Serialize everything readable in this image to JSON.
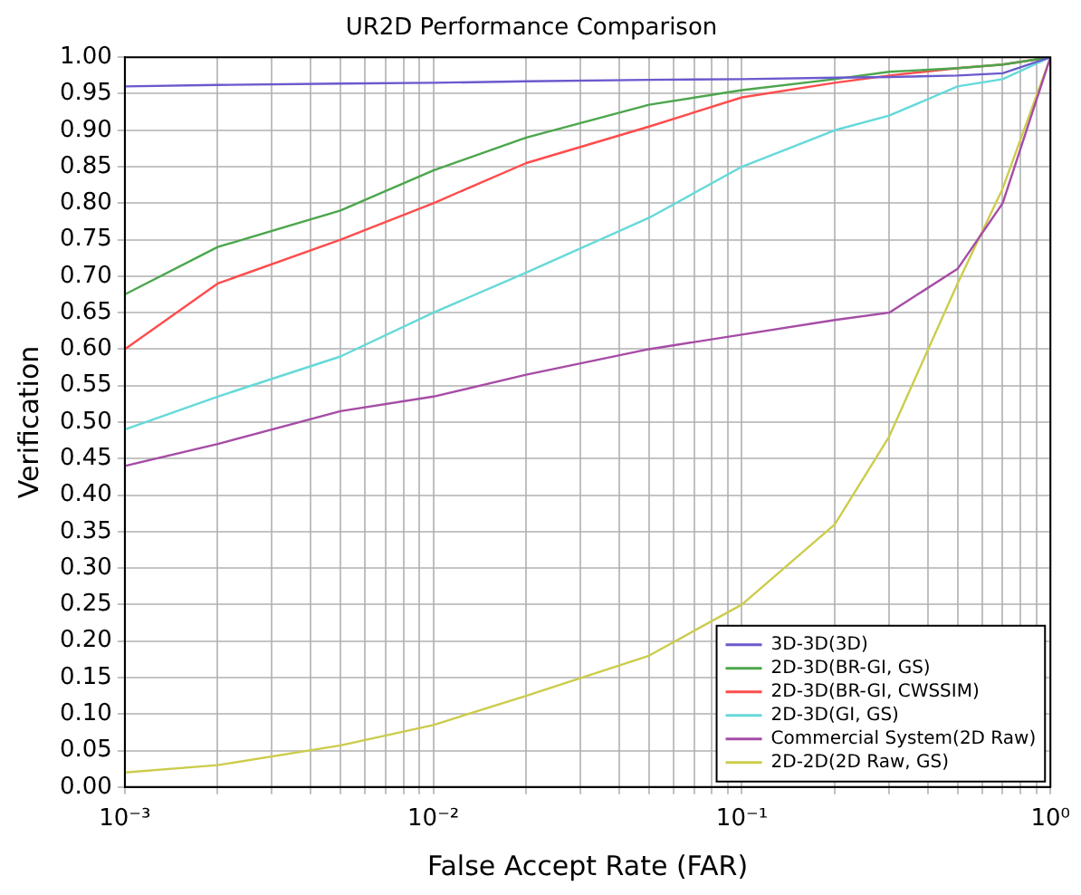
{
  "chart_data": {
    "type": "line",
    "title": "UR2D Performance Comparison",
    "xlabel": "False Accept Rate (FAR)",
    "ylabel": "Verification",
    "log": "x",
    "grid": true,
    "legend": "bottom right",
    "marker": "none",
    "line_style": "solid",
    "x": [
      0.001,
      0.002,
      0.005,
      0.01,
      0.02,
      0.05,
      0.1,
      0.2,
      0.3,
      0.5,
      0.7,
      1
    ],
    "xlim": [
      0.001,
      1
    ],
    "xticks": [
      {
        "value": 0.001,
        "label": "10⁻³"
      },
      {
        "value": 0.002,
        "label": null
      },
      {
        "value": 0.003,
        "label": null
      },
      {
        "value": 0.004,
        "label": null
      },
      {
        "value": 0.005,
        "label": null
      },
      {
        "value": 0.006,
        "label": null
      },
      {
        "value": 0.007,
        "label": null
      },
      {
        "value": 0.008,
        "label": null
      },
      {
        "value": 0.009,
        "label": null
      },
      {
        "value": 0.01,
        "label": "10⁻²"
      },
      {
        "value": 0.02,
        "label": null
      },
      {
        "value": 0.03,
        "label": null
      },
      {
        "value": 0.04,
        "label": null
      },
      {
        "value": 0.05,
        "label": null
      },
      {
        "value": 0.06,
        "label": null
      },
      {
        "value": 0.07,
        "label": null
      },
      {
        "value": 0.08,
        "label": null
      },
      {
        "value": 0.09,
        "label": null
      },
      {
        "value": 0.1,
        "label": "10⁻¹"
      },
      {
        "value": 0.2,
        "label": null
      },
      {
        "value": 0.3,
        "label": null
      },
      {
        "value": 0.4,
        "label": null
      },
      {
        "value": 0.5,
        "label": null
      },
      {
        "value": 0.6,
        "label": null
      },
      {
        "value": 0.7,
        "label": null
      },
      {
        "value": 0.8,
        "label": null
      },
      {
        "value": 0.9,
        "label": null
      },
      {
        "value": 1,
        "label": "10⁰"
      }
    ],
    "ylim": [
      0,
      1
    ],
    "yticks": [
      {
        "value": 0,
        "label": "0.00"
      },
      {
        "value": 0.05,
        "label": "0.05"
      },
      {
        "value": 0.1,
        "label": "0.10"
      },
      {
        "value": 0.15,
        "label": "0.15"
      },
      {
        "value": 0.2,
        "label": "0.20"
      },
      {
        "value": 0.25,
        "label": "0.25"
      },
      {
        "value": 0.3,
        "label": "0.30"
      },
      {
        "value": 0.35,
        "label": "0.35"
      },
      {
        "value": 0.4,
        "label": "0.40"
      },
      {
        "value": 0.45,
        "label": "0.45"
      },
      {
        "value": 0.5,
        "label": "0.50"
      },
      {
        "value": 0.55,
        "label": "0.55"
      },
      {
        "value": 0.6,
        "label": "0.60"
      },
      {
        "value": 0.65,
        "label": "0.65"
      },
      {
        "value": 0.7,
        "label": "0.70"
      },
      {
        "value": 0.75,
        "label": "0.75"
      },
      {
        "value": 0.8,
        "label": "0.80"
      },
      {
        "value": 0.85,
        "label": "0.85"
      },
      {
        "value": 0.9,
        "label": "0.90"
      },
      {
        "value": 0.95,
        "label": "0.95"
      },
      {
        "value": 1,
        "label": "1.00"
      }
    ],
    "series": [
      {
        "name": "3D-3D(3D)",
        "color": "#6a5acd",
        "values": [
          0.96,
          0.962,
          0.964,
          0.965,
          0.967,
          0.969,
          0.97,
          0.972,
          0.973,
          0.975,
          0.978,
          1
        ]
      },
      {
        "name": "2D-3D(BR-GI, GS)",
        "color": "#4ca64c",
        "values": [
          0.675,
          0.74,
          0.79,
          0.845,
          0.89,
          0.935,
          0.955,
          0.97,
          0.98,
          0.985,
          0.99,
          1
        ]
      },
      {
        "name": "2D-3D(BR-GI, CWSSIM)",
        "color": "#ff4c4c",
        "values": [
          0.6,
          0.69,
          0.75,
          0.8,
          0.855,
          0.905,
          0.945,
          0.965,
          0.975,
          0.985,
          0.99,
          1
        ]
      },
      {
        "name": "2D-3D(GI, GS)",
        "color": "#66d9d9",
        "values": [
          0.49,
          0.535,
          0.59,
          0.65,
          0.705,
          0.78,
          0.85,
          0.9,
          0.92,
          0.96,
          0.97,
          1
        ]
      },
      {
        "name": "Commercial System(2D Raw)",
        "color": "#a64ca6",
        "values": [
          0.44,
          0.47,
          0.515,
          0.535,
          0.565,
          0.6,
          0.62,
          0.64,
          0.65,
          0.71,
          0.8,
          1
        ]
      },
      {
        "name": "2D-2D(2D Raw, GS)",
        "color": "#cccc4c",
        "values": [
          0.02,
          0.03,
          0.057,
          0.085,
          0.125,
          0.18,
          0.25,
          0.36,
          0.48,
          0.69,
          0.82,
          1
        ]
      }
    ]
  }
}
